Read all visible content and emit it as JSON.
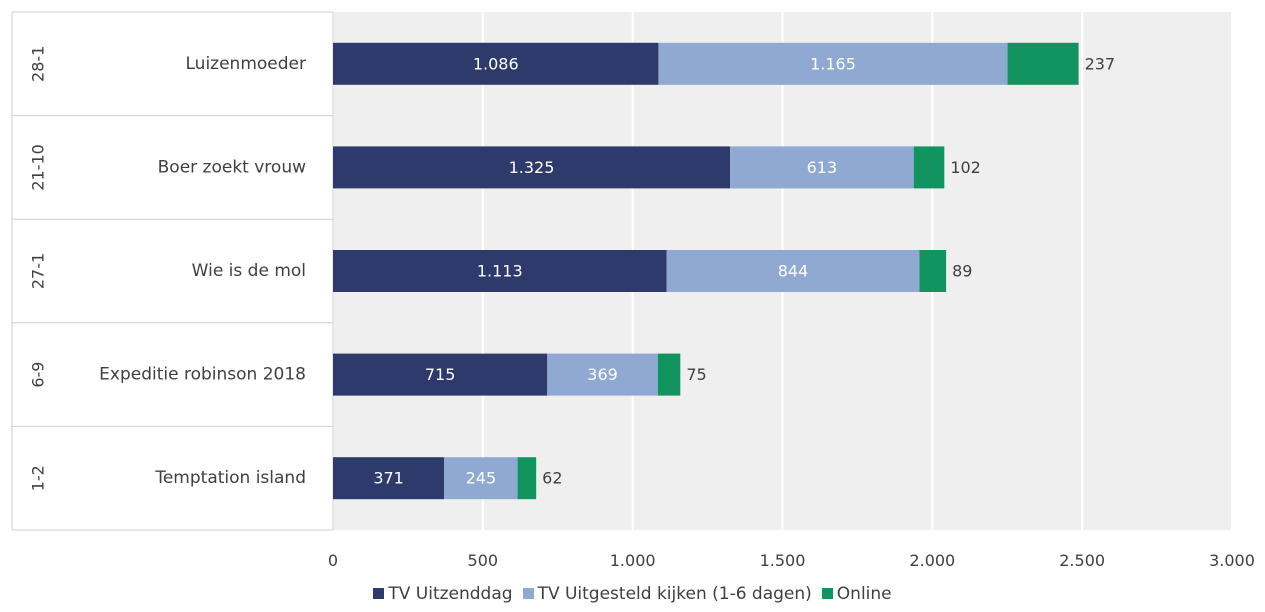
{
  "chart_data": {
    "type": "bar",
    "orientation": "horizontal",
    "stacked": true,
    "title": "",
    "xlabel": "",
    "ylabel": "",
    "groups": [
      "28-1",
      "21-10",
      "27-1",
      "6-9",
      "1-2"
    ],
    "categories": [
      "Luizenmoeder",
      "Boer zoekt vrouw",
      "Wie is de mol",
      "Expeditie robinson 2018",
      "Temptation island"
    ],
    "series": [
      {
        "name": "TV Uitzenddag",
        "color": "#2e3a6b",
        "values": [
          1086,
          1325,
          1113,
          715,
          371
        ],
        "labels": [
          "1.086",
          "1.325",
          "1.113",
          "715",
          "371"
        ]
      },
      {
        "name": "TV Uitgesteld kijken (1-6 dagen)",
        "color": "#8fa9d3",
        "values": [
          1165,
          613,
          844,
          369,
          245
        ],
        "labels": [
          "1.165",
          "613",
          "844",
          "369",
          "245"
        ]
      },
      {
        "name": "Online",
        "color": "#129461",
        "values": [
          237,
          102,
          89,
          75,
          62
        ],
        "labels": [
          "237",
          "102",
          "89",
          "75",
          "62"
        ]
      }
    ],
    "xlim": [
      0,
      3000
    ],
    "x_ticks": [
      0,
      500,
      1000,
      1500,
      2000,
      2500,
      3000
    ],
    "x_tick_labels": [
      "0",
      "500",
      "1.000",
      "1.500",
      "2.000",
      "2.500",
      "3.000"
    ],
    "grid": true,
    "legend_position": "bottom"
  }
}
